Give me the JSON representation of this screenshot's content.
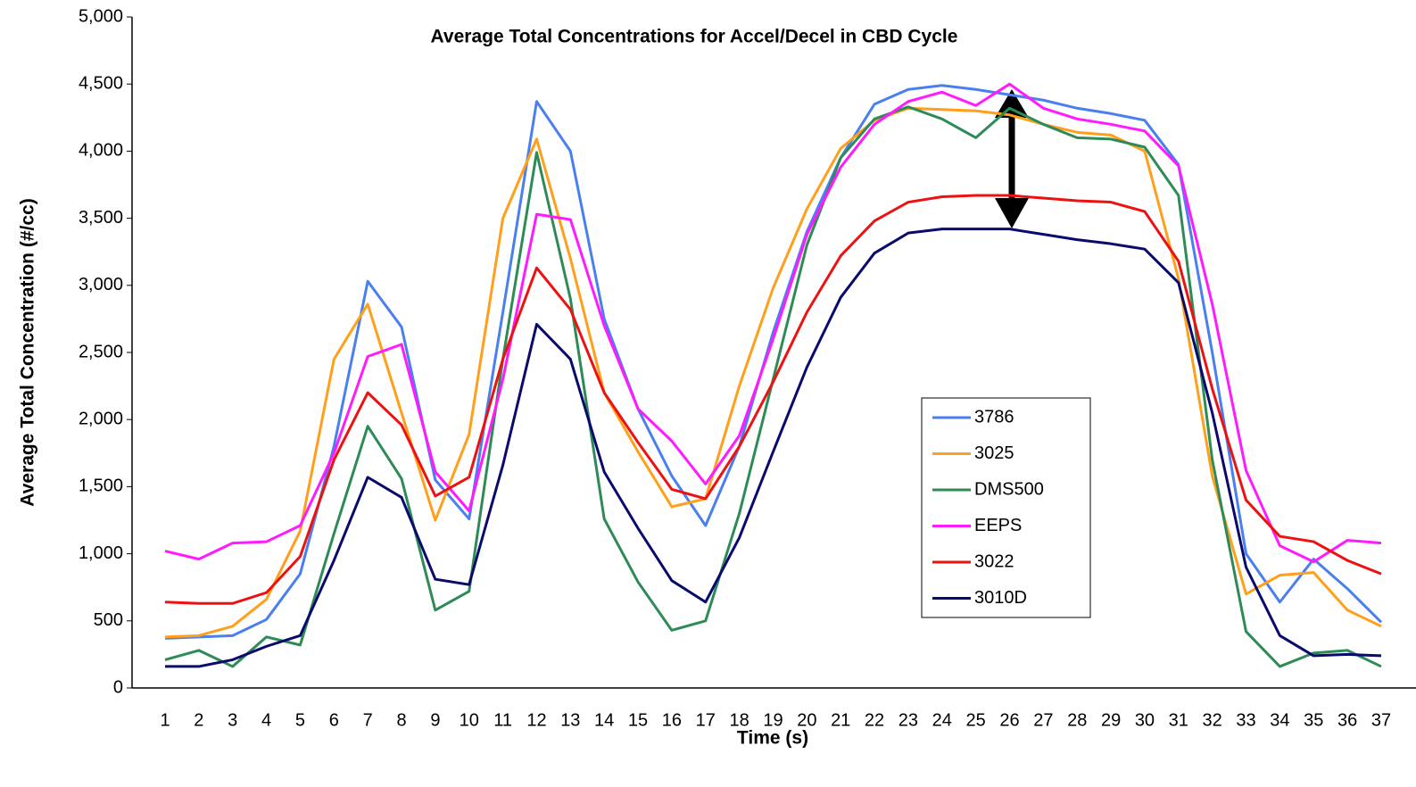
{
  "chart_data": {
    "type": "line",
    "title": "Average Total Concentrations for Accel/Decel in CBD Cycle",
    "x_label": "Time (s)",
    "y_label": "Average Total Concentration  (#/cc)",
    "categories": [
      "1",
      "2",
      "3",
      "4",
      "5",
      "6",
      "7",
      "8",
      "9",
      "10",
      "11",
      "12",
      "13",
      "14",
      "15",
      "16",
      "17",
      "18",
      "19",
      "20",
      "21",
      "22",
      "23",
      "24",
      "25",
      "26",
      "27",
      "28",
      "29",
      "30",
      "31",
      "32",
      "33",
      "34",
      "35",
      "36",
      "37"
    ],
    "series": [
      {
        "name": "3786",
        "color": "#4a7ff0",
        "values": [
          370,
          380,
          390,
          510,
          850,
          1800,
          3030,
          2690,
          1550,
          1260,
          2800,
          4370,
          4000,
          2750,
          2080,
          1580,
          1210,
          1800,
          2650,
          3400,
          3950,
          4350,
          4460,
          4490,
          4460,
          4420,
          4380,
          4320,
          4280,
          4230,
          3900,
          2500,
          1000,
          640,
          960,
          740,
          490
        ]
      },
      {
        "name": "3025",
        "color": "#ff9f1a",
        "values": [
          380,
          390,
          460,
          660,
          1170,
          2450,
          2860,
          2050,
          1250,
          1890,
          3500,
          4090,
          3200,
          2200,
          1760,
          1350,
          1410,
          2250,
          2980,
          3570,
          4020,
          4230,
          4320,
          4310,
          4300,
          4270,
          4200,
          4140,
          4120,
          4000,
          3050,
          1580,
          700,
          840,
          860,
          580,
          460
        ]
      },
      {
        "name": "DMS500",
        "color": "#2e8b57",
        "values": [
          210,
          280,
          160,
          380,
          320,
          1150,
          1950,
          1560,
          580,
          720,
          2450,
          3990,
          2900,
          1260,
          790,
          430,
          500,
          1300,
          2300,
          3300,
          3950,
          4240,
          4330,
          4240,
          4100,
          4320,
          4200,
          4100,
          4090,
          4030,
          3670,
          1700,
          420,
          160,
          260,
          280,
          160
        ]
      },
      {
        "name": "EEPS",
        "color": "#ff1aff",
        "values": [
          1020,
          960,
          1080,
          1090,
          1210,
          1750,
          2470,
          2560,
          1610,
          1320,
          2300,
          3530,
          3490,
          2700,
          2080,
          1840,
          1520,
          1880,
          2600,
          3380,
          3880,
          4200,
          4370,
          4440,
          4340,
          4500,
          4320,
          4240,
          4200,
          4150,
          3890,
          2860,
          1620,
          1060,
          940,
          1100,
          1080
        ]
      },
      {
        "name": "3022",
        "color": "#ee1111",
        "values": [
          640,
          630,
          630,
          710,
          980,
          1700,
          2200,
          1960,
          1430,
          1570,
          2450,
          3130,
          2820,
          2200,
          1830,
          1480,
          1410,
          1800,
          2280,
          2800,
          3220,
          3480,
          3620,
          3660,
          3670,
          3670,
          3650,
          3630,
          3620,
          3550,
          3180,
          2230,
          1400,
          1130,
          1090,
          950,
          850
        ]
      },
      {
        "name": "3010D",
        "color": "#0a0a6e",
        "values": [
          160,
          160,
          210,
          310,
          390,
          950,
          1570,
          1420,
          810,
          770,
          1660,
          2710,
          2450,
          1610,
          1190,
          800,
          640,
          1120,
          1760,
          2390,
          2910,
          3240,
          3390,
          3420,
          3420,
          3420,
          3380,
          3340,
          3310,
          3270,
          3020,
          2050,
          900,
          390,
          240,
          250,
          240
        ]
      }
    ],
    "ylim": [
      0,
      5000
    ],
    "yticks": [
      0,
      500,
      {
        "value": 1000,
        "label": "1,000"
      },
      {
        "value": 1500,
        "label": "1,500"
      },
      {
        "value": 2000,
        "label": "2,000"
      },
      {
        "value": 2500,
        "label": "2,500"
      },
      {
        "value": 3000,
        "label": "3,000"
      },
      {
        "value": 3500,
        "label": "3,500"
      },
      {
        "value": 4000,
        "label": "4,000"
      },
      {
        "value": 4500,
        "label": "4,500"
      },
      {
        "value": 5000,
        "label": "5,000"
      }
    ],
    "grid": false
  }
}
